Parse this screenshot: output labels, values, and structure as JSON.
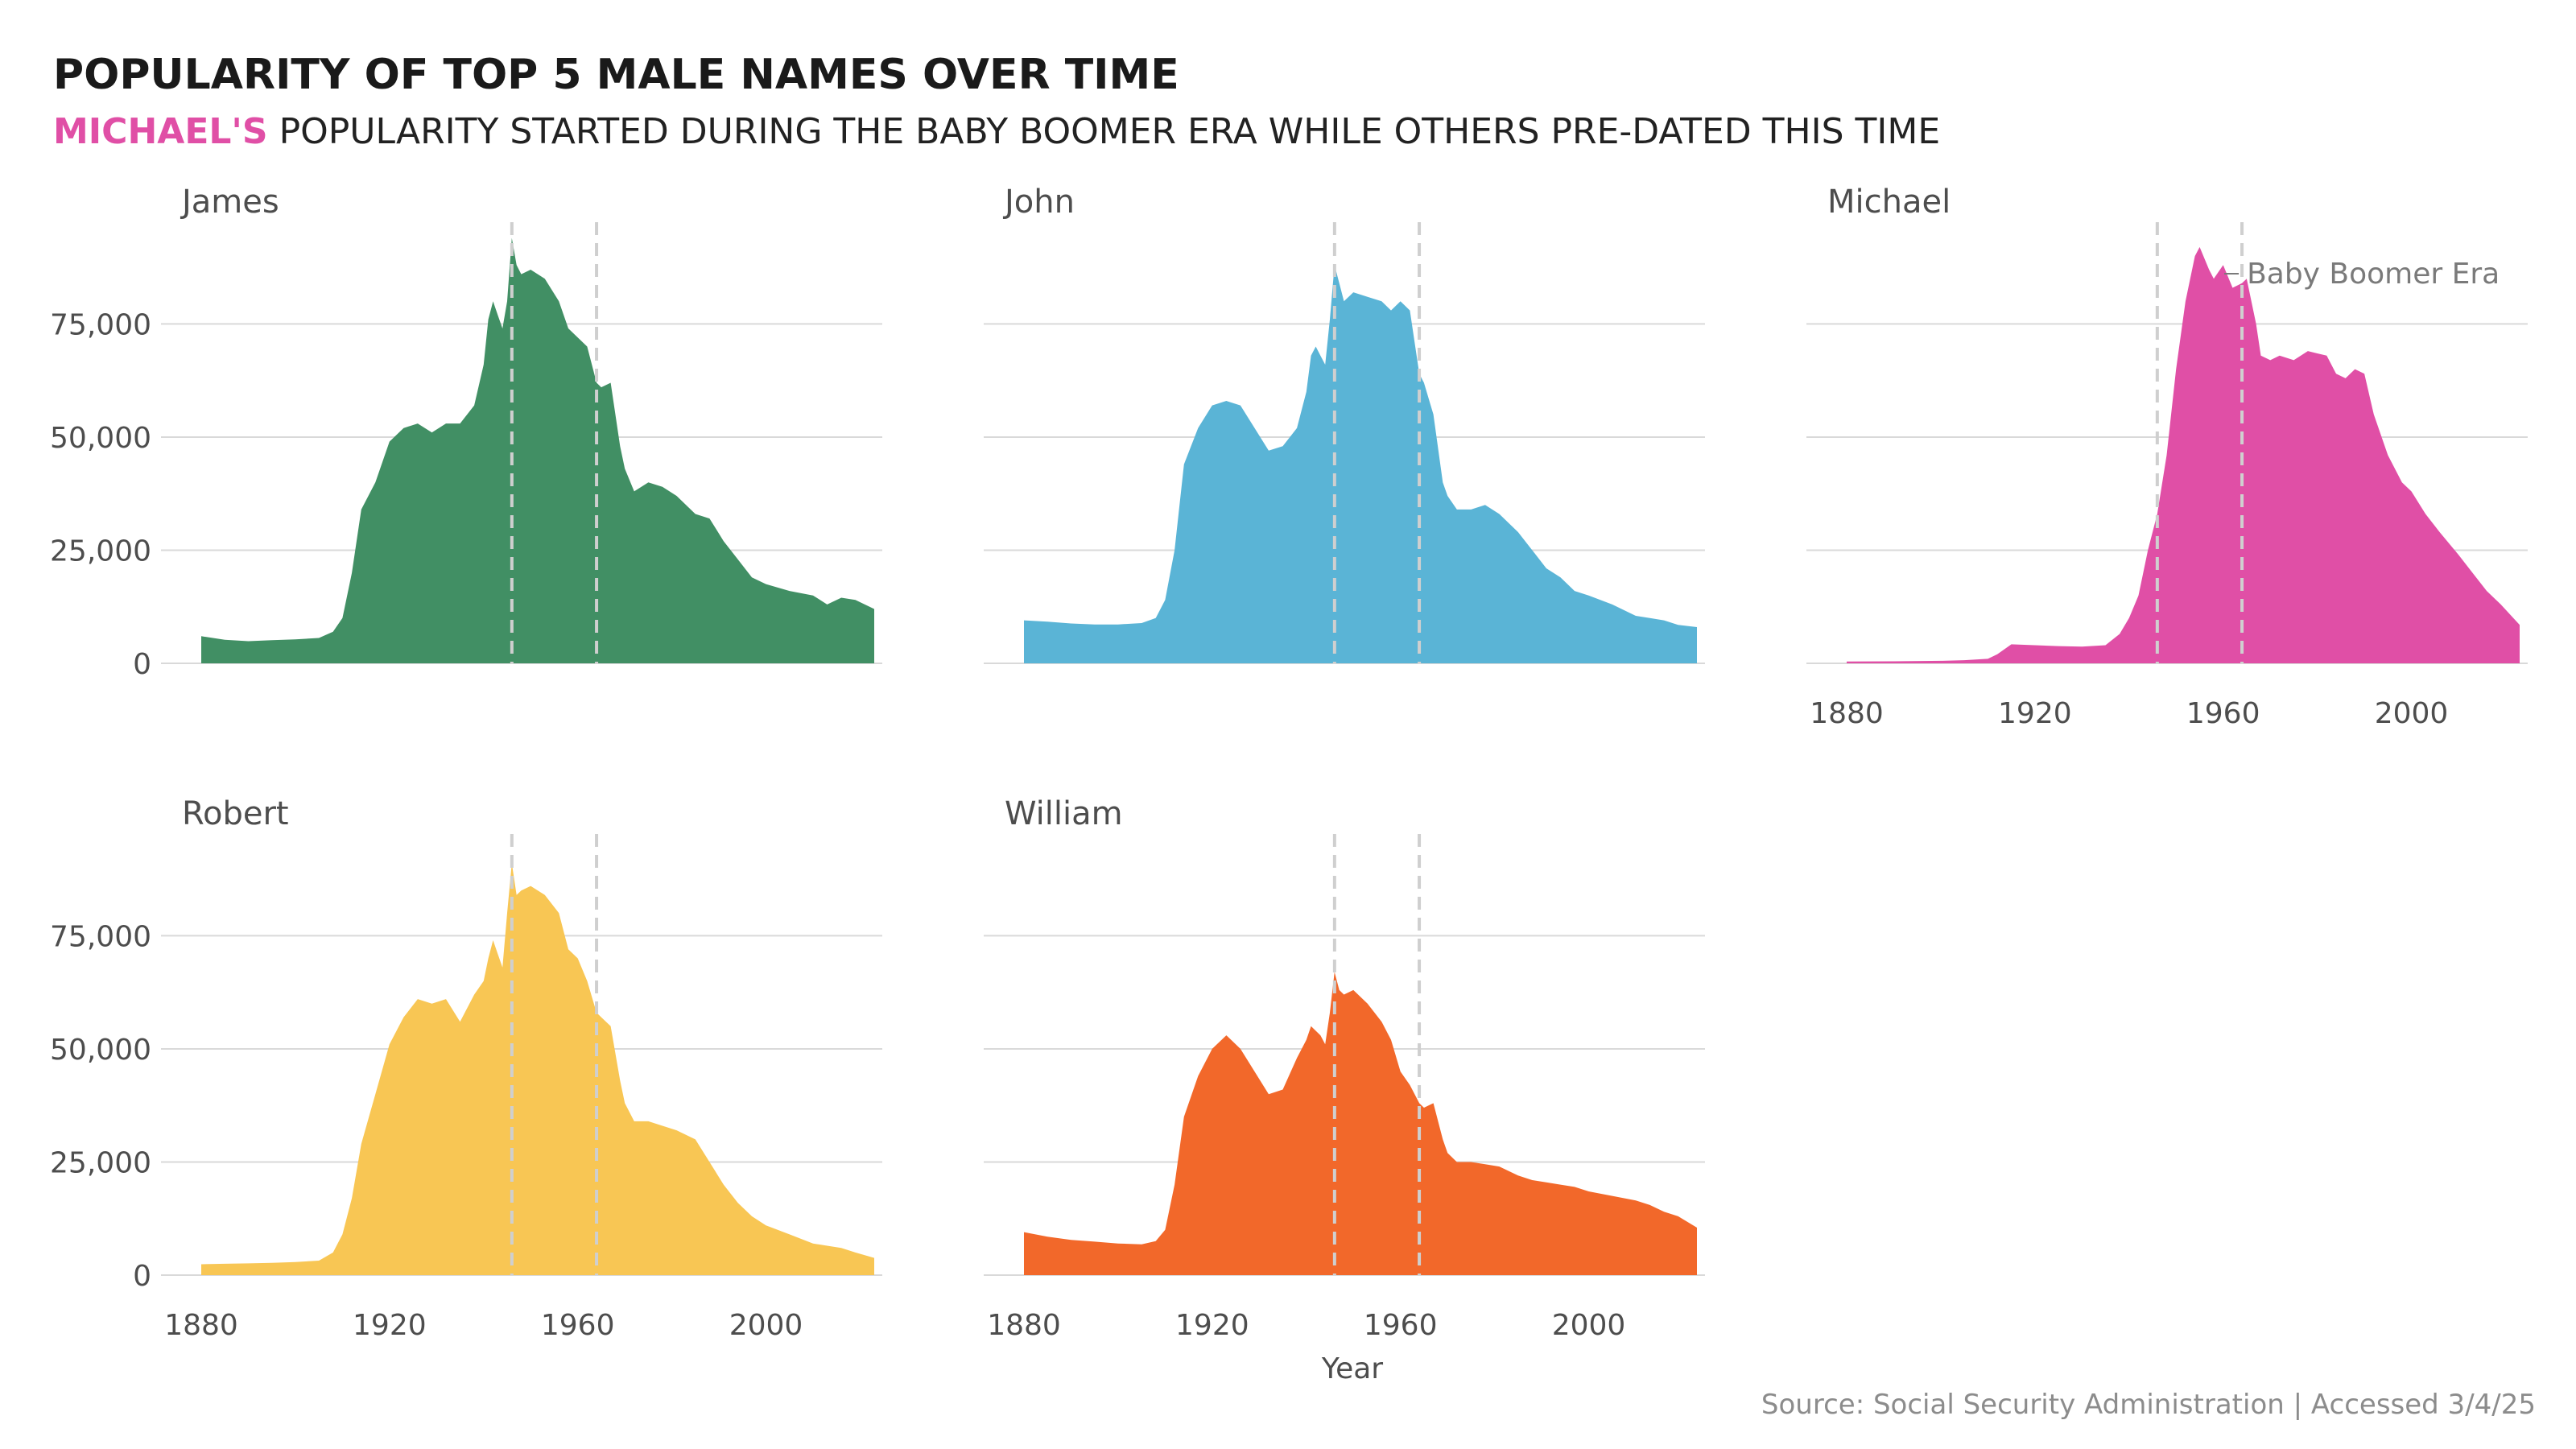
{
  "colors": {
    "highlight": "#E04FA6",
    "James": "#418F64",
    "John": "#5AB4D6",
    "Michael": "#E04FA6",
    "Robert": "#F8C654",
    "William": "#F2682A"
  },
  "title": "POPULARITY OF TOP 5 MALE NAMES OVER TIME",
  "subtitle": {
    "highlight": "MICHAEL'S",
    "rest": " POPULARITY STARTED DURING THE BABY BOOMER ERA WHILE OTHERS PRE-DATED THIS TIME"
  },
  "caption": "Source: Social Security Administration | Accessed 3/4/25",
  "chart_data": {
    "type": "area",
    "title": "POPULARITY OF TOP 5 MALE NAMES OVER TIME",
    "xlabel": "Year",
    "ylabel": "",
    "xlim": [
      1880,
      2023
    ],
    "ylim": [
      0,
      95000
    ],
    "x_ticks": [
      1880,
      1920,
      1960,
      2000
    ],
    "x_tick_labels": [
      "1880",
      "1920",
      "1960",
      "2000"
    ],
    "y_ticks": [
      0,
      25000,
      50000,
      75000
    ],
    "y_tick_labels": [
      "0",
      "25,000",
      "50,000",
      "75,000"
    ],
    "reference_lines": [
      1946,
      1964
    ],
    "annotation": {
      "text": "Baby Boomer Era",
      "panel": "Michael"
    },
    "grid": true,
    "series": [
      {
        "name": "James",
        "x": [
          1880,
          1885,
          1890,
          1895,
          1900,
          1905,
          1908,
          1910,
          1912,
          1914,
          1917,
          1920,
          1923,
          1926,
          1929,
          1932,
          1935,
          1938,
          1940,
          1941,
          1942,
          1943,
          1944,
          1945,
          1946,
          1947,
          1948,
          1950,
          1953,
          1956,
          1958,
          1960,
          1962,
          1964,
          1965,
          1967,
          1969,
          1970,
          1972,
          1975,
          1978,
          1981,
          1985,
          1988,
          1991,
          1994,
          1997,
          2000,
          2005,
          2010,
          2013,
          2016,
          2019,
          2023
        ],
        "values": [
          6000,
          5200,
          4900,
          5100,
          5300,
          5600,
          7000,
          10000,
          20000,
          34000,
          40000,
          49000,
          52000,
          53000,
          51000,
          53000,
          53000,
          57000,
          66000,
          76000,
          80000,
          77000,
          74000,
          80000,
          94000,
          88000,
          86000,
          87000,
          85000,
          80000,
          74000,
          72000,
          70000,
          62000,
          61000,
          62000,
          48000,
          43000,
          38000,
          40000,
          39000,
          37000,
          33000,
          32000,
          27000,
          23000,
          19000,
          17500,
          16000,
          15000,
          13000,
          14500,
          14000,
          12000
        ]
      },
      {
        "name": "John",
        "x": [
          1880,
          1885,
          1890,
          1895,
          1900,
          1905,
          1908,
          1910,
          1912,
          1914,
          1917,
          1920,
          1923,
          1926,
          1929,
          1932,
          1935,
          1938,
          1940,
          1941,
          1942,
          1943,
          1944,
          1945,
          1946,
          1947,
          1948,
          1950,
          1953,
          1956,
          1958,
          1960,
          1962,
          1964,
          1965,
          1967,
          1969,
          1970,
          1972,
          1975,
          1978,
          1981,
          1985,
          1988,
          1991,
          1994,
          1997,
          2000,
          2005,
          2010,
          2013,
          2016,
          2019,
          2023
        ],
        "values": [
          9500,
          9200,
          8800,
          8600,
          8600,
          8900,
          10000,
          14000,
          25000,
          44000,
          52000,
          57000,
          58000,
          57000,
          52000,
          47000,
          48000,
          52000,
          60000,
          68000,
          70000,
          68000,
          66000,
          76000,
          88000,
          84000,
          80000,
          82000,
          81000,
          80000,
          78000,
          80000,
          78000,
          64000,
          62000,
          55000,
          40000,
          37000,
          34000,
          34000,
          35000,
          33000,
          29000,
          25000,
          21000,
          19000,
          16000,
          15000,
          13000,
          10500,
          10000,
          9500,
          8500,
          8000
        ]
      },
      {
        "name": "Michael",
        "x": [
          1880,
          1890,
          1900,
          1905,
          1910,
          1912,
          1915,
          1920,
          1925,
          1930,
          1935,
          1938,
          1940,
          1942,
          1944,
          1946,
          1948,
          1950,
          1952,
          1954,
          1955,
          1957,
          1958,
          1960,
          1962,
          1964,
          1965,
          1967,
          1968,
          1970,
          1972,
          1975,
          1978,
          1980,
          1982,
          1984,
          1986,
          1988,
          1990,
          1992,
          1995,
          1998,
          2000,
          2003,
          2006,
          2010,
          2013,
          2016,
          2019,
          2023
        ],
        "values": [
          400,
          450,
          550,
          700,
          1000,
          2000,
          4200,
          4000,
          3800,
          3700,
          4000,
          6500,
          10000,
          15000,
          25000,
          33000,
          46000,
          65000,
          80000,
          90000,
          92000,
          87000,
          85000,
          88000,
          83000,
          84000,
          85000,
          75000,
          68000,
          67000,
          68000,
          67000,
          69000,
          68500,
          68000,
          64000,
          63000,
          65000,
          64000,
          55000,
          46000,
          40000,
          38000,
          33000,
          29000,
          24000,
          20000,
          16000,
          13000,
          8500
        ]
      },
      {
        "name": "Robert",
        "x": [
          1880,
          1885,
          1890,
          1895,
          1900,
          1905,
          1908,
          1910,
          1912,
          1914,
          1917,
          1920,
          1923,
          1926,
          1929,
          1932,
          1935,
          1938,
          1940,
          1941,
          1942,
          1943,
          1944,
          1945,
          1946,
          1947,
          1948,
          1950,
          1953,
          1956,
          1958,
          1960,
          1962,
          1964,
          1965,
          1967,
          1969,
          1970,
          1972,
          1975,
          1978,
          1981,
          1985,
          1988,
          1991,
          1994,
          1997,
          2000,
          2005,
          2010,
          2013,
          2016,
          2019,
          2023
        ],
        "values": [
          2400,
          2500,
          2600,
          2700,
          2900,
          3200,
          5000,
          9000,
          17000,
          29000,
          40000,
          51000,
          57000,
          61000,
          60000,
          61000,
          56000,
          62000,
          65000,
          70000,
          74000,
          71000,
          68000,
          80000,
          91000,
          84000,
          85000,
          86000,
          84000,
          80000,
          72000,
          70000,
          65000,
          58000,
          57000,
          55000,
          43000,
          38000,
          34000,
          34000,
          33000,
          32000,
          30000,
          25000,
          20000,
          16000,
          13000,
          11000,
          9000,
          7000,
          6500,
          6000,
          5000,
          3800
        ]
      },
      {
        "name": "William",
        "x": [
          1880,
          1885,
          1890,
          1895,
          1900,
          1905,
          1908,
          1910,
          1912,
          1914,
          1917,
          1920,
          1923,
          1926,
          1929,
          1932,
          1935,
          1938,
          1940,
          1941,
          1942,
          1943,
          1944,
          1945,
          1946,
          1947,
          1948,
          1950,
          1953,
          1956,
          1958,
          1960,
          1962,
          1964,
          1965,
          1967,
          1969,
          1970,
          1972,
          1975,
          1978,
          1981,
          1985,
          1988,
          1991,
          1994,
          1997,
          2000,
          2005,
          2010,
          2013,
          2016,
          2019,
          2023
        ],
        "values": [
          9500,
          8500,
          7800,
          7400,
          7000,
          6800,
          7500,
          10000,
          20000,
          35000,
          44000,
          50000,
          53000,
          50000,
          45000,
          40000,
          41000,
          48000,
          52000,
          55000,
          54000,
          53000,
          51000,
          58000,
          67000,
          63000,
          62000,
          63000,
          60000,
          56000,
          52000,
          45000,
          42000,
          38000,
          37000,
          38000,
          30000,
          27000,
          25000,
          25000,
          24500,
          24000,
          22000,
          21000,
          20500,
          20000,
          19500,
          18500,
          17500,
          16500,
          15500,
          14000,
          13000,
          10500
        ]
      }
    ]
  }
}
